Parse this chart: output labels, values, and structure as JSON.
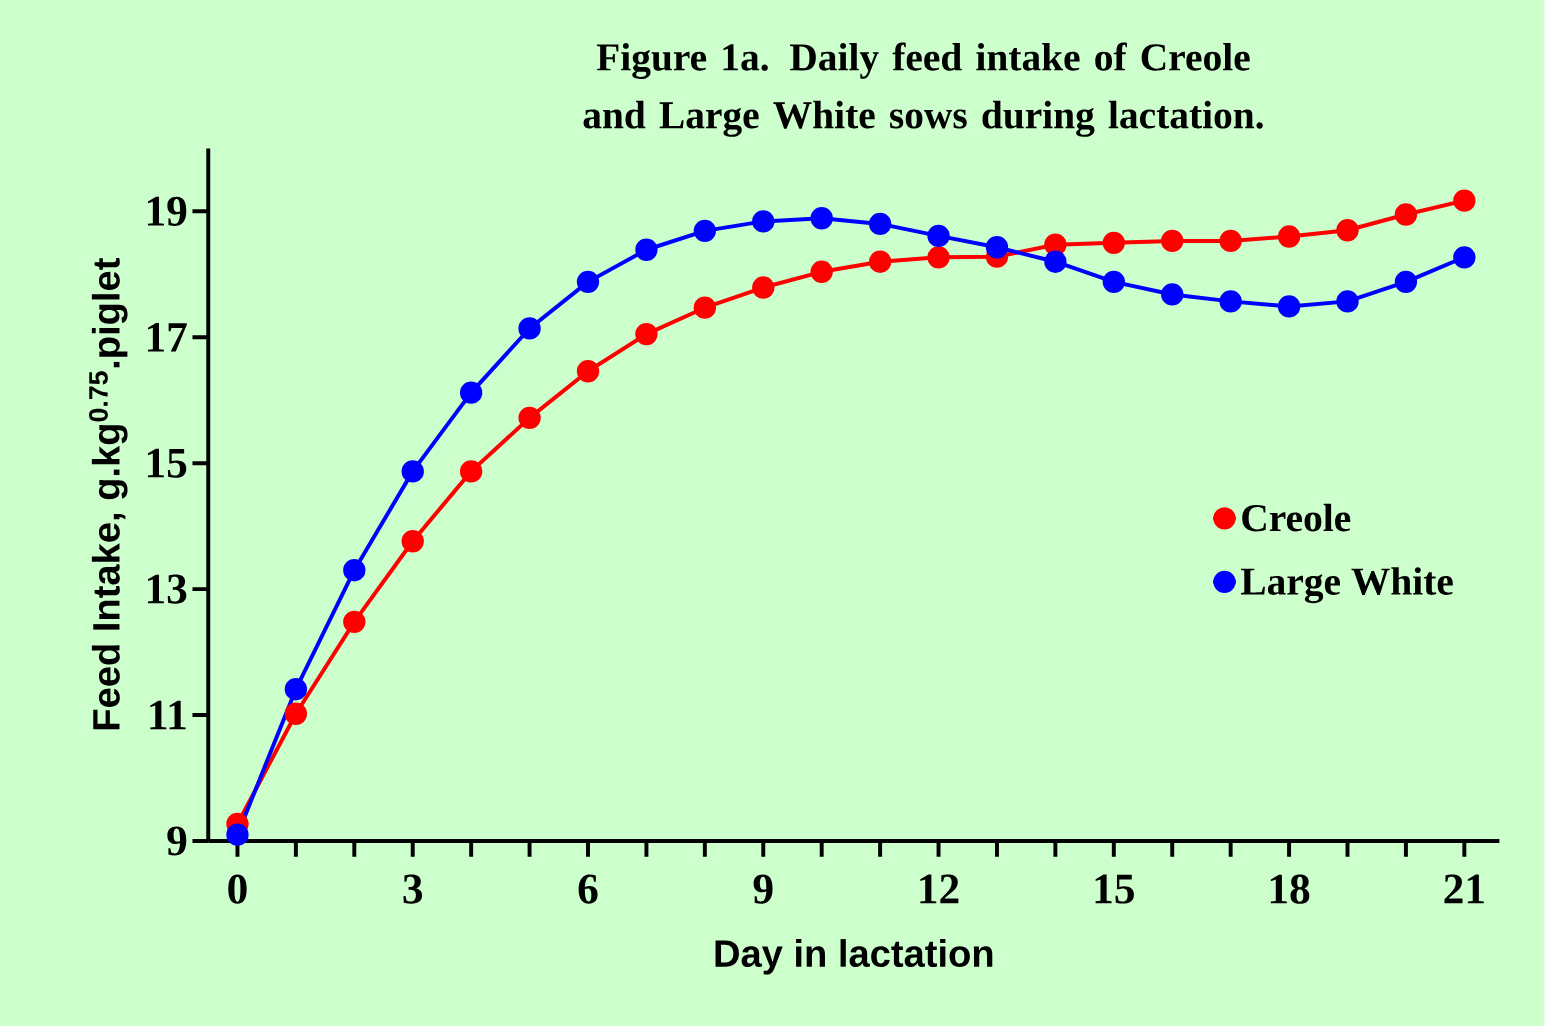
{
  "chart_data": {
    "type": "line",
    "title": "Figure 1a. Daily feed intake of Creole and Large White sows during lactation.",
    "xlabel": "Day in lactation",
    "ylabel": "Feed Intake, g.kg$^{0.75}$.piglet",
    "x": [
      0,
      1,
      2,
      3,
      4,
      5,
      6,
      7,
      8,
      9,
      10,
      11,
      12,
      13,
      14,
      15,
      16,
      17,
      18,
      19,
      20,
      21
    ],
    "series": [
      {
        "name": "Creole",
        "color": "#ff0000",
        "values": [
          9.27,
          11.02,
          12.48,
          13.76,
          14.87,
          15.72,
          16.46,
          17.05,
          17.47,
          17.79,
          18.04,
          18.2,
          18.27,
          18.28,
          18.47,
          18.5,
          18.53,
          18.53,
          18.6,
          18.7,
          18.95,
          19.17
        ]
      },
      {
        "name": "Large White",
        "color": "#0000ff",
        "values": [
          9.1,
          11.41,
          13.3,
          14.87,
          16.12,
          17.14,
          17.88,
          18.39,
          18.69,
          18.84,
          18.89,
          18.8,
          18.61,
          18.43,
          18.2,
          17.88,
          17.68,
          17.57,
          17.49,
          17.57,
          17.88,
          18.27
        ]
      }
    ],
    "xlim": [
      -0.5,
      21.6
    ],
    "ylim": [
      9,
      20
    ],
    "xticks": [
      0,
      {
        "value": 1,
        "label": null
      },
      {
        "value": 2,
        "label": null
      },
      3,
      {
        "value": 4,
        "label": null
      },
      {
        "value": 5,
        "label": null
      },
      6,
      {
        "value": 7,
        "label": null
      },
      {
        "value": 8,
        "label": null
      },
      9,
      {
        "value": 10,
        "label": null
      },
      {
        "value": 11,
        "label": null
      },
      12,
      {
        "value": 13,
        "label": null
      },
      {
        "value": 14,
        "label": null
      },
      15,
      {
        "value": 16,
        "label": null
      },
      {
        "value": 17,
        "label": null
      },
      18,
      {
        "value": 19,
        "label": null
      },
      {
        "value": 20,
        "label": null
      },
      21
    ],
    "yticks": [
      9,
      11,
      13,
      15,
      17,
      19
    ],
    "grid": false,
    "legend": "right",
    "marker": "circle",
    "line_style": "solid"
  }
}
